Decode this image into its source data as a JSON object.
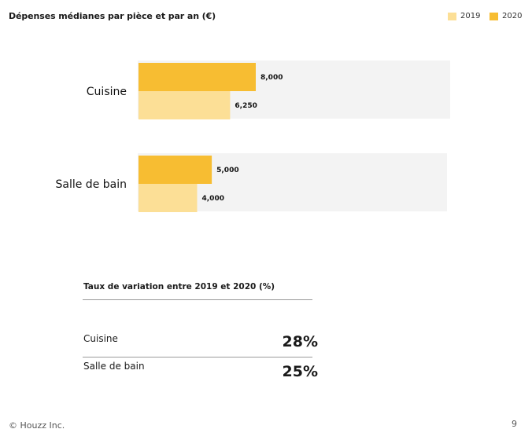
{
  "title": "Dépenses médianes par pièce et par an (€)",
  "colors": {
    "y2019": "#fcdf96",
    "y2020": "#f7bd32",
    "track": "#f3f3f3"
  },
  "chart_data": {
    "type": "bar",
    "orientation": "horizontal",
    "title": "Dépenses médianes par pièce et par an (€)",
    "categories": [
      "Cuisine",
      "Salle de bain"
    ],
    "series": [
      {
        "name": "2020",
        "values": [
          8000,
          5000
        ],
        "labels": [
          "8,000",
          "5,000"
        ]
      },
      {
        "name": "2019",
        "values": [
          6250,
          4000
        ],
        "labels": [
          "6,250",
          "4,000"
        ]
      }
    ],
    "xlim": [
      0,
      21500
    ],
    "legend": "top-right",
    "grid": false
  },
  "rates": {
    "title": "Taux de variation entre 2019 et 2020 (%)",
    "rows": [
      {
        "label": "Cuisine",
        "value": "28%"
      },
      {
        "label": "Salle de bain",
        "value": "25%"
      }
    ]
  },
  "footer": {
    "copyright": "© Houzz Inc.",
    "page": "9"
  }
}
